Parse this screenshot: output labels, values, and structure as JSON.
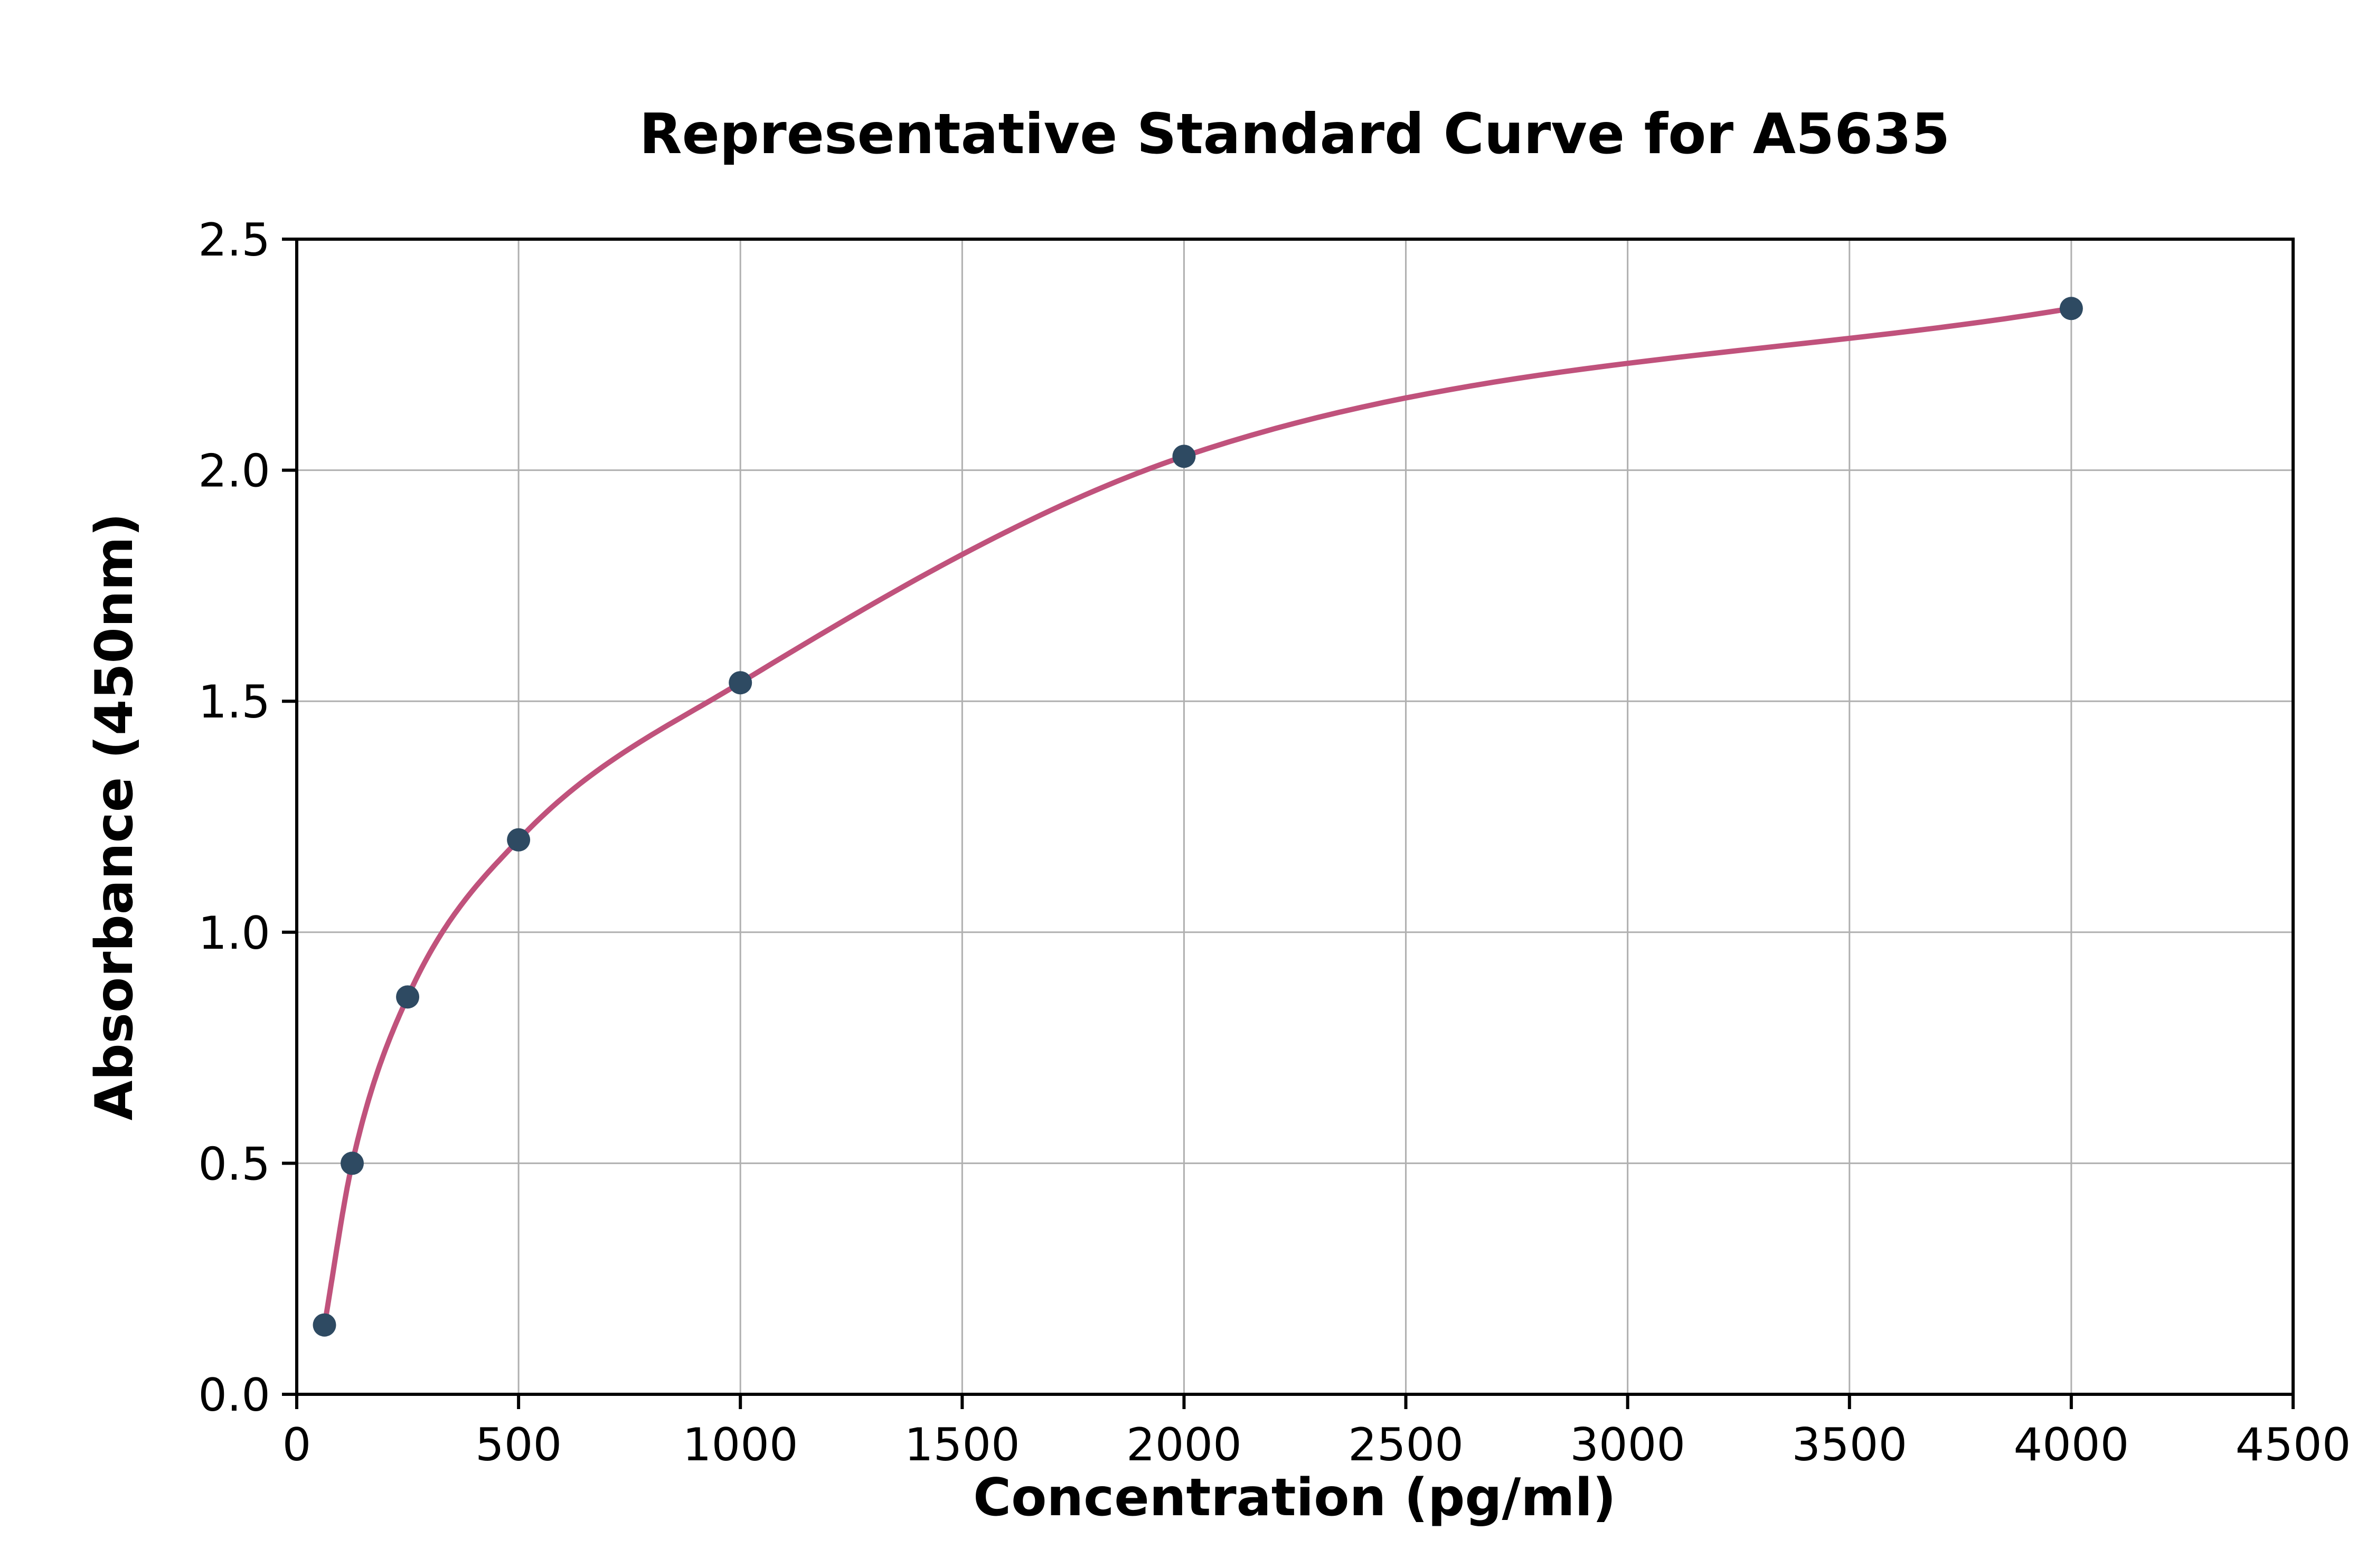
{
  "chart_data": {
    "type": "scatter",
    "title": "Representative Standard Curve for A5635",
    "xlabel": "Concentration (pg/ml)",
    "ylabel": "Absorbance (450nm)",
    "xlim": [
      0,
      4500
    ],
    "ylim": [
      0,
      2.5
    ],
    "grid": true,
    "legend": "none",
    "x_ticks": {
      "values": [
        0,
        500,
        1000,
        1500,
        2000,
        2500,
        3000,
        3500,
        4000,
        4500
      ],
      "labels": [
        "0",
        "500",
        "1000",
        "1500",
        "2000",
        "2500",
        "3000",
        "3500",
        "4000",
        "4500"
      ]
    },
    "y_ticks": {
      "values": [
        0,
        0.5,
        1.0,
        1.5,
        2.0,
        2.5
      ],
      "labels": [
        "0.0",
        "0.5",
        "1.0",
        "1.5",
        "2.0",
        "2.5"
      ]
    },
    "points": {
      "name": "standard-dilution-points",
      "x": [
        62.5,
        125,
        250,
        500,
        1000,
        2000,
        4000
      ],
      "y": [
        0.15,
        0.5,
        0.86,
        1.2,
        1.54,
        2.03,
        2.35
      ]
    },
    "curve": {
      "name": "fitted-standard-curve",
      "through_points": true
    },
    "colors": {
      "point": "#2e4a62",
      "curve": "#c0527c",
      "grid": "#b0b0b0",
      "axis": "#000000"
    }
  }
}
